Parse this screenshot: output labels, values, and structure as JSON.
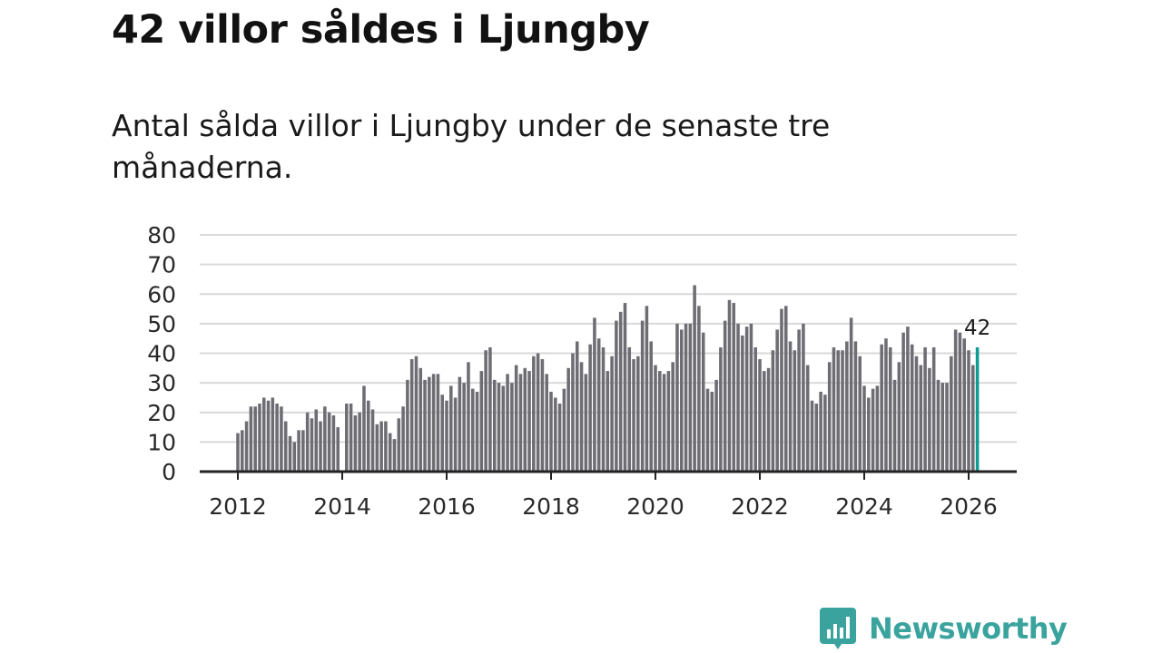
{
  "header": {
    "title": "42 villor såldes i Ljungby",
    "subtitle": "Antal sålda villor i Ljungby under de senaste tre månaderna."
  },
  "brand": {
    "name": "Newsworthy",
    "color": "#3aa39e",
    "icon": "newsworthy-logo-icon"
  },
  "colors": {
    "bar": "#6e6d74",
    "highlight": "#0f9a93",
    "grid": "#d9d9d9",
    "axis": "#222222"
  },
  "chart_data": {
    "type": "bar",
    "title": "42 villor såldes i Ljungby",
    "subtitle": "Antal sålda villor i Ljungby under de senaste tre månaderna.",
    "xlabel": "",
    "ylabel": "",
    "ylim": [
      0,
      80
    ],
    "yticks": [
      "0",
      "10",
      "20",
      "30",
      "40",
      "50",
      "60",
      "70",
      "80"
    ],
    "xticks": [
      "2012",
      "2014",
      "2016",
      "2018",
      "2020",
      "2022",
      "2024",
      "2026"
    ],
    "grid": true,
    "period": "monthly, rolling three-month total, 2012-01 to 2026-03",
    "highlight_label": "42",
    "series": [
      {
        "name": "2012",
        "values": [
          13,
          14,
          17,
          22,
          22,
          23,
          25,
          24,
          25,
          23,
          22,
          17
        ]
      },
      {
        "name": "2013",
        "values": [
          12,
          10,
          14,
          14,
          20,
          18,
          21,
          17,
          22,
          20,
          19,
          15
        ]
      },
      {
        "name": "2014",
        "values": [
          0,
          23,
          23,
          19,
          20,
          29,
          24,
          21,
          16,
          17,
          17,
          13
        ]
      },
      {
        "name": "2015",
        "values": [
          11,
          18,
          22,
          31,
          38,
          39,
          35,
          31,
          32,
          33,
          33,
          26
        ]
      },
      {
        "name": "2016",
        "values": [
          24,
          29,
          25,
          32,
          30,
          37,
          28,
          27,
          34,
          41,
          42,
          31
        ]
      },
      {
        "name": "2017",
        "values": [
          30,
          29,
          33,
          30,
          36,
          33,
          35,
          34,
          39,
          40,
          38,
          33
        ]
      },
      {
        "name": "2018",
        "values": [
          27,
          25,
          23,
          28,
          35,
          40,
          44,
          37,
          33,
          43,
          52,
          45
        ]
      },
      {
        "name": "2019",
        "values": [
          42,
          34,
          39,
          51,
          54,
          57,
          42,
          38,
          39,
          51,
          56,
          44
        ]
      },
      {
        "name": "2020",
        "values": [
          36,
          34,
          33,
          34,
          37,
          50,
          48,
          50,
          50,
          63,
          56,
          47
        ]
      },
      {
        "name": "2021",
        "values": [
          28,
          27,
          31,
          42,
          51,
          58,
          57,
          50,
          46,
          49,
          50,
          42
        ]
      },
      {
        "name": "2022",
        "values": [
          38,
          34,
          35,
          41,
          48,
          55,
          56,
          44,
          41,
          48,
          50,
          36
        ]
      },
      {
        "name": "2023",
        "values": [
          24,
          23,
          27,
          26,
          37,
          42,
          41,
          41,
          44,
          52,
          44,
          39
        ]
      },
      {
        "name": "2024",
        "values": [
          29,
          25,
          28,
          29,
          43,
          45,
          42,
          31,
          37,
          47,
          49,
          43
        ]
      },
      {
        "name": "2025",
        "values": [
          39,
          36,
          42,
          35,
          42,
          31,
          30,
          30,
          39,
          48,
          47,
          45
        ]
      },
      {
        "name": "2026",
        "values": [
          41,
          36,
          42
        ]
      }
    ]
  }
}
